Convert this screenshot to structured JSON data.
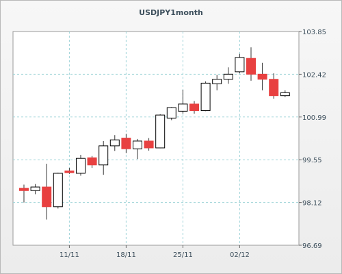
{
  "chart_data": {
    "type": "candlestick",
    "title": "USDJPY1month",
    "xlabel": "",
    "ylabel": "",
    "ylim": [
      96.69,
      103.85
    ],
    "y_ticks": [
      "103.85",
      "102.42",
      "100.99",
      "99.55",
      "98.12",
      "96.69"
    ],
    "x_tick_labels": [
      {
        "label": "11/11",
        "index": 4
      },
      {
        "label": "18/11",
        "index": 9
      },
      {
        "label": "25/11",
        "index": 14
      },
      {
        "label": "02/12",
        "index": 19
      }
    ],
    "grid": true,
    "colors": {
      "up": "#ffffff",
      "down": "#e84040",
      "wick": "#333333",
      "grid": "#9fd4d8"
    },
    "candles": [
      {
        "o": 98.6,
        "h": 98.72,
        "l": 98.12,
        "c": 98.52
      },
      {
        "o": 98.52,
        "h": 98.74,
        "l": 98.4,
        "c": 98.64
      },
      {
        "o": 98.64,
        "h": 99.42,
        "l": 97.55,
        "c": 97.98
      },
      {
        "o": 97.98,
        "h": 99.12,
        "l": 97.92,
        "c": 99.1
      },
      {
        "o": 99.18,
        "h": 99.28,
        "l": 99.08,
        "c": 99.12
      },
      {
        "o": 99.1,
        "h": 99.72,
        "l": 99.02,
        "c": 99.6
      },
      {
        "o": 99.62,
        "h": 99.68,
        "l": 99.28,
        "c": 99.38
      },
      {
        "o": 99.38,
        "h": 100.18,
        "l": 99.05,
        "c": 100.02
      },
      {
        "o": 100.02,
        "h": 100.38,
        "l": 99.85,
        "c": 100.22
      },
      {
        "o": 100.28,
        "h": 100.42,
        "l": 99.78,
        "c": 99.92
      },
      {
        "o": 99.92,
        "h": 100.25,
        "l": 99.58,
        "c": 100.18
      },
      {
        "o": 100.18,
        "h": 100.28,
        "l": 99.86,
        "c": 99.95
      },
      {
        "o": 99.95,
        "h": 101.08,
        "l": 99.94,
        "c": 101.05
      },
      {
        "o": 100.95,
        "h": 101.32,
        "l": 100.88,
        "c": 101.3
      },
      {
        "o": 101.18,
        "h": 101.9,
        "l": 101.1,
        "c": 101.42
      },
      {
        "o": 101.42,
        "h": 101.52,
        "l": 101.1,
        "c": 101.2
      },
      {
        "o": 101.2,
        "h": 102.18,
        "l": 101.18,
        "c": 102.12
      },
      {
        "o": 102.1,
        "h": 102.4,
        "l": 101.88,
        "c": 102.25
      },
      {
        "o": 102.25,
        "h": 102.65,
        "l": 102.1,
        "c": 102.42
      },
      {
        "o": 102.5,
        "h": 103.1,
        "l": 102.45,
        "c": 102.98
      },
      {
        "o": 102.95,
        "h": 103.32,
        "l": 102.2,
        "c": 102.42
      },
      {
        "o": 102.42,
        "h": 102.8,
        "l": 101.88,
        "c": 102.25
      },
      {
        "o": 102.25,
        "h": 102.45,
        "l": 101.6,
        "c": 101.7
      },
      {
        "o": 101.7,
        "h": 101.88,
        "l": 101.65,
        "c": 101.8
      }
    ]
  }
}
